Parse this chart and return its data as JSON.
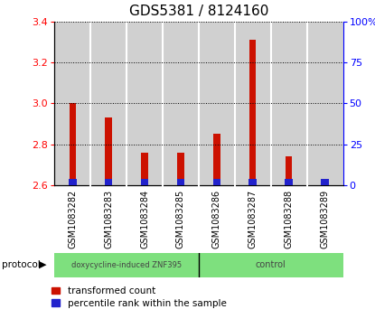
{
  "title": "GDS5381 / 8124160",
  "samples": [
    "GSM1083282",
    "GSM1083283",
    "GSM1083284",
    "GSM1083285",
    "GSM1083286",
    "GSM1083287",
    "GSM1083288",
    "GSM1083289"
  ],
  "red_values": [
    3.0,
    2.93,
    2.76,
    2.76,
    2.85,
    3.31,
    2.74,
    2.6
  ],
  "blue_values": [
    10.0,
    10.0,
    10.0,
    10.0,
    10.0,
    12.5,
    10.0,
    5.0
  ],
  "ylim_left": [
    2.6,
    3.4
  ],
  "ylim_right": [
    0,
    100
  ],
  "yticks_left": [
    2.6,
    2.8,
    3.0,
    3.2,
    3.4
  ],
  "yticks_right": [
    0,
    25,
    50,
    75,
    100
  ],
  "ytick_labels_right": [
    "0",
    "25",
    "50",
    "75",
    "100%"
  ],
  "bar_bottom": 2.6,
  "red_color": "#CC1100",
  "blue_color": "#2222CC",
  "bg_color": "#D0D0D0",
  "title_fontsize": 11,
  "tick_fontsize": 8,
  "legend_fontsize": 7.5
}
